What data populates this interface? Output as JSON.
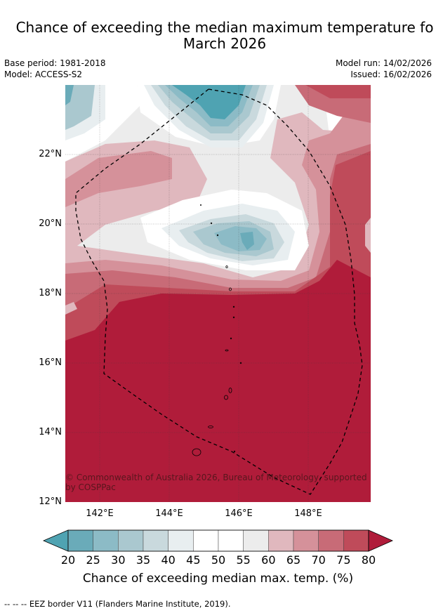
{
  "title": {
    "line1": "Chance of exceeding the median maximum temperature fo",
    "line2": "March 2026"
  },
  "meta": {
    "base_period": "Base period: 1981-2018",
    "model": "Model: ACCESS-S2",
    "model_run": "Model run: 14/02/2026",
    "issued": "Issued: 16/02/2026"
  },
  "map": {
    "lat_ticks": [
      "22°N",
      "20°N",
      "18°N",
      "16°N",
      "14°N",
      "12°N"
    ],
    "lon_ticks": [
      "142°E",
      "144°E",
      "146°E",
      "148°E"
    ],
    "lat_range": [
      12,
      24
    ],
    "lon_range": [
      141,
      149.8
    ],
    "copyright": "© Commonwealth of Australia 2026, Bureau of Meteorology, supported by COSPPac"
  },
  "colorbar": {
    "ticks": [
      "20",
      "25",
      "30",
      "35",
      "40",
      "45",
      "50",
      "55",
      "60",
      "65",
      "70",
      "75",
      "80"
    ],
    "colors": [
      "#4fa3b2",
      "#6aabb9",
      "#8cbbc6",
      "#aac8cf",
      "#c9d9dd",
      "#e8eef0",
      "#ffffff",
      "#ffffff",
      "#ececec",
      "#e0b8be",
      "#d5919a",
      "#c86b77",
      "#bf4b5a",
      "#b01c3a"
    ],
    "label": "Chance of exceeding median max. temp. (%)"
  },
  "footnote": "--  --  -- EEZ border V11 (Flanders Marine Institute, 2019)."
}
